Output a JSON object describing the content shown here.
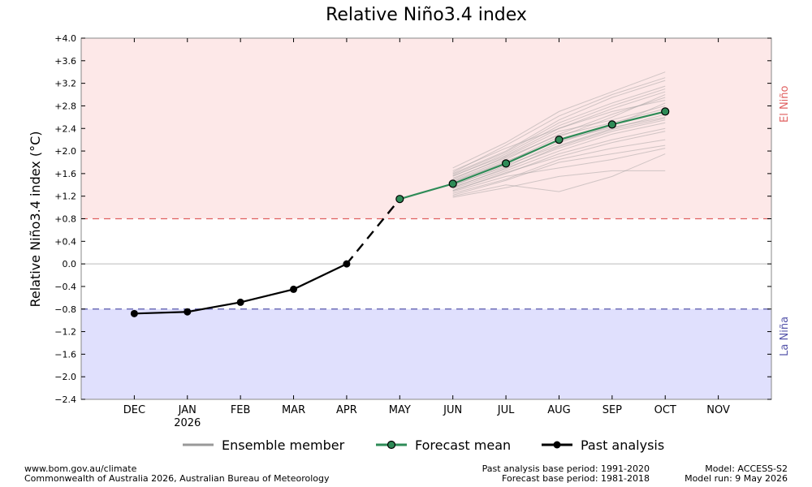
{
  "chart_data": {
    "type": "line",
    "title": "Relative Niño3.4 index",
    "ylabel": "Relative Niño3.4 index (°C)",
    "ylim": [
      -2.4,
      4.0
    ],
    "y_ticks": [
      "+4.0",
      "+3.6",
      "+3.2",
      "+2.8",
      "+2.4",
      "+2.0",
      "+1.6",
      "+1.2",
      "+0.8",
      "+0.4",
      "0.0",
      "−0.4",
      "−0.8",
      "−1.2",
      "−1.6",
      "−2.0",
      "−2.4"
    ],
    "y_tick_values": [
      4.0,
      3.6,
      3.2,
      2.8,
      2.4,
      2.0,
      1.6,
      1.2,
      0.8,
      0.4,
      0.0,
      -0.4,
      -0.8,
      -1.2,
      -1.6,
      -2.0,
      -2.4
    ],
    "months": [
      {
        "label": "DEC",
        "year": ""
      },
      {
        "label": "JAN",
        "year": "2026"
      },
      {
        "label": "FEB",
        "year": ""
      },
      {
        "label": "MAR",
        "year": ""
      },
      {
        "label": "APR",
        "year": ""
      },
      {
        "label": "MAY",
        "year": ""
      },
      {
        "label": "JUN",
        "year": ""
      },
      {
        "label": "JUL",
        "year": ""
      },
      {
        "label": "AUG",
        "year": ""
      },
      {
        "label": "SEP",
        "year": ""
      },
      {
        "label": "OCT",
        "year": ""
      },
      {
        "label": "NOV",
        "year": ""
      }
    ],
    "thresholds": {
      "el_nino": {
        "value": 0.8,
        "label": "El Niño",
        "color": "#e06060"
      },
      "la_nina": {
        "value": -0.8,
        "label": "La Niña",
        "color": "#5555aa"
      }
    },
    "colors": {
      "el_nino_band": "#fde8e8",
      "la_nina_band": "#e0e0fd",
      "forecast_mean": "#2e8b57",
      "ensemble": "#999999",
      "past": "#000000"
    },
    "series": [
      {
        "name": "Past analysis",
        "x": [
          "DEC",
          "JAN",
          "FEB",
          "MAR",
          "APR"
        ],
        "values": [
          -0.88,
          -0.85,
          -0.68,
          -0.45,
          0.0
        ]
      },
      {
        "name": "Forecast mean",
        "x": [
          "MAY",
          "JUN",
          "JUL",
          "AUG",
          "SEP",
          "OCT"
        ],
        "values": [
          1.15,
          1.42,
          1.78,
          2.2,
          2.47,
          2.7
        ]
      }
    ],
    "ensemble": {
      "x": [
        "JUN",
        "JUL",
        "AUG",
        "SEP",
        "OCT"
      ],
      "members": [
        [
          1.42,
          1.78,
          2.2,
          2.47,
          2.7
        ],
        [
          1.55,
          1.95,
          2.45,
          2.8,
          3.1
        ],
        [
          1.3,
          1.6,
          1.95,
          2.2,
          2.4
        ],
        [
          1.7,
          2.15,
          2.7,
          3.05,
          3.4
        ],
        [
          1.2,
          1.4,
          1.28,
          1.55,
          1.95
        ],
        [
          1.48,
          1.85,
          2.3,
          2.65,
          2.95
        ],
        [
          1.35,
          1.7,
          2.05,
          2.35,
          2.55
        ],
        [
          1.6,
          2.0,
          2.55,
          2.95,
          3.25
        ],
        [
          1.25,
          1.5,
          1.85,
          2.05,
          2.2
        ],
        [
          1.5,
          1.9,
          2.35,
          2.55,
          2.8
        ],
        [
          1.38,
          1.75,
          2.1,
          2.4,
          2.65
        ],
        [
          1.65,
          2.05,
          2.4,
          2.7,
          2.9
        ],
        [
          1.28,
          1.55,
          1.7,
          1.85,
          2.05
        ],
        [
          1.45,
          1.8,
          2.25,
          2.6,
          3.0
        ],
        [
          1.58,
          1.98,
          2.5,
          2.85,
          3.15
        ],
        [
          1.33,
          1.65,
          2.0,
          2.3,
          2.5
        ],
        [
          1.18,
          1.35,
          1.55,
          1.65,
          1.65
        ],
        [
          1.52,
          1.88,
          2.28,
          2.5,
          2.75
        ],
        [
          1.4,
          1.72,
          2.15,
          2.45,
          2.85
        ],
        [
          1.62,
          2.1,
          2.62,
          3.0,
          3.3
        ],
        [
          1.3,
          1.62,
          1.9,
          2.15,
          2.35
        ],
        [
          1.46,
          1.82,
          2.18,
          2.42,
          2.6
        ],
        [
          1.36,
          1.68,
          2.08,
          2.38,
          2.58
        ],
        [
          1.56,
          1.92,
          2.4,
          2.75,
          3.05
        ],
        [
          1.22,
          1.48,
          1.8,
          1.95,
          2.1
        ]
      ]
    },
    "legend": [
      {
        "label": "Ensemble member"
      },
      {
        "label": "Forecast mean"
      },
      {
        "label": "Past analysis"
      }
    ]
  },
  "footer": {
    "left_line1": "www.bom.gov.au/climate",
    "left_line2": "Commonwealth of Australia 2026, Australian Bureau of Meteorology",
    "mid_line1": "Past analysis base period: 1991-2020",
    "mid_line2": "Forecast base period: 1981-2018",
    "right_line1": "Model: ACCESS-S2",
    "right_line2": "Model run: 9 May 2026"
  }
}
